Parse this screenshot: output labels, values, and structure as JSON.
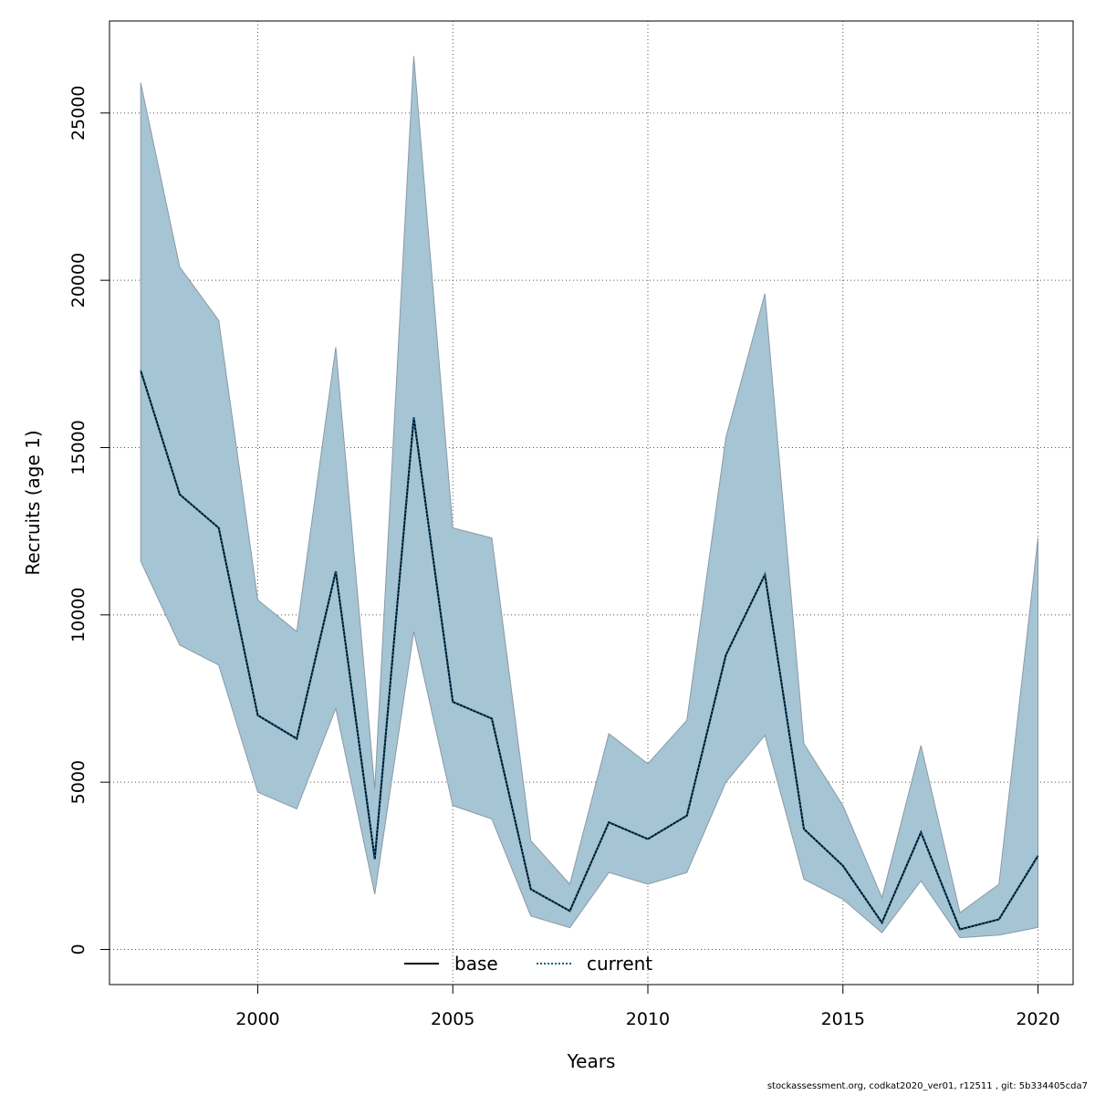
{
  "chart_data": {
    "type": "area",
    "xlabel": "Years",
    "ylabel": "Recruits (age 1)",
    "xlim": [
      1996.2,
      2020.9
    ],
    "ylim": [
      -1050,
      27750
    ],
    "x_ticks": [
      2000,
      2005,
      2010,
      2015,
      2020
    ],
    "x_tick_labels": [
      "2000",
      "2005",
      "2010",
      "2015",
      "2020"
    ],
    "y_ticks": [
      0,
      5000,
      10000,
      15000,
      20000,
      25000
    ],
    "y_tick_labels": [
      "0",
      "5000",
      "10000",
      "15000",
      "20000",
      "25000"
    ],
    "grid": true,
    "legend_position": "bottom-center",
    "x": [
      1997,
      1998,
      1999,
      2000,
      2001,
      2002,
      2003,
      2004,
      2005,
      2006,
      2007,
      2008,
      2009,
      2010,
      2011,
      2012,
      2013,
      2014,
      2015,
      2016,
      2017,
      2018,
      2019,
      2020
    ],
    "series": [
      {
        "name": "base",
        "style": "solid",
        "color": "#000000",
        "values": [
          17300,
          13600,
          12600,
          7000,
          6300,
          11300,
          2700,
          15900,
          7400,
          6900,
          1800,
          1150,
          3800,
          3300,
          4000,
          8800,
          11200,
          3600,
          2500,
          800,
          3500,
          600,
          900,
          2800
        ]
      },
      {
        "name": "current",
        "style": "dotted",
        "color": "#0e5f8a",
        "values": [
          17300,
          13600,
          12600,
          7000,
          6300,
          11300,
          2700,
          15900,
          7400,
          6900,
          1800,
          1150,
          3800,
          3300,
          4000,
          8800,
          11200,
          3600,
          2500,
          800,
          3500,
          600,
          900,
          2800
        ]
      }
    ],
    "confidence_band": {
      "color": "#a5c4d4",
      "edge_color": "#8a9aa6",
      "lower": [
        11600,
        9100,
        8500,
        4700,
        4200,
        7200,
        1650,
        9500,
        4300,
        3900,
        1000,
        650,
        2300,
        1950,
        2300,
        5000,
        6400,
        2100,
        1500,
        500,
        2050,
        350,
        430,
        660
      ],
      "upper": [
        25900,
        20400,
        18800,
        10450,
        9500,
        18000,
        4800,
        26700,
        12600,
        12300,
        3250,
        1950,
        6450,
        5550,
        6850,
        15300,
        19600,
        6150,
        4300,
        1550,
        6100,
        1100,
        1950,
        12300
      ]
    }
  },
  "footer": {
    "text": "stockassessment.org, codkat2020_ver01, r12511 , git: 5b334405cda7"
  }
}
